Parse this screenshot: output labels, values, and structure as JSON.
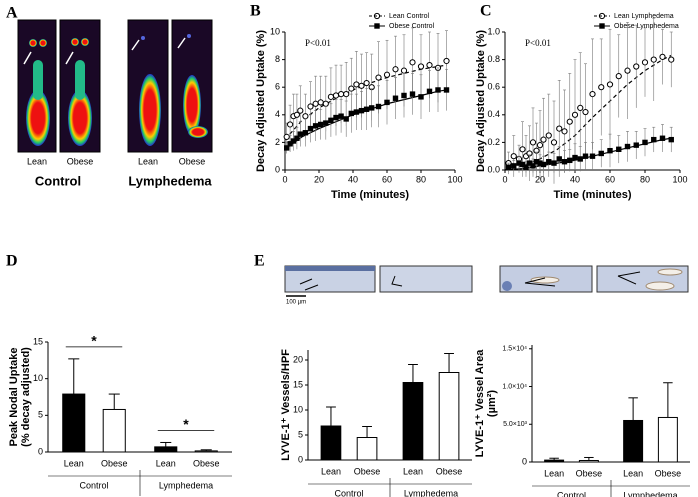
{
  "panel_labels": [
    "A",
    "B",
    "C",
    "D",
    "E"
  ],
  "panel_a": {
    "columns": [
      "Lean",
      "Obese",
      "Lean",
      "Obese"
    ],
    "groups": [
      "Control",
      "Lymphedema"
    ]
  },
  "panel_e": {
    "scale_bar": "100 µm"
  },
  "chart_data": [
    {
      "type": "scatter",
      "annotation": "P<0.01",
      "xlabel": "Time (minutes)",
      "ylabel": "Decay Adjusted Uptake (%)",
      "xlim": [
        0,
        100
      ],
      "ylim": [
        0,
        10
      ],
      "xticks": [
        0,
        20,
        40,
        60,
        80,
        100
      ],
      "yticks": [
        0,
        2,
        4,
        6,
        8,
        10
      ],
      "legend": "upper right",
      "series": [
        {
          "name": "Lean Control",
          "color": "#000000",
          "fill": "#ffffff",
          "marker": "circle",
          "line_dash": true,
          "x": [
            1,
            3,
            5,
            7,
            9,
            12,
            15,
            18,
            21,
            24,
            27,
            30,
            33,
            36,
            39,
            42,
            45,
            48,
            51,
            55,
            60,
            65,
            70,
            75,
            80,
            85,
            90,
            95
          ],
          "values": [
            2.4,
            3.3,
            3.9,
            4.0,
            4.3,
            3.9,
            4.6,
            4.8,
            4.9,
            4.8,
            5.3,
            5.4,
            5.5,
            5.5,
            5.9,
            6.2,
            6.1,
            6.3,
            6.0,
            6.7,
            6.9,
            7.3,
            7.2,
            7.8,
            7.5,
            7.6,
            7.4,
            7.9
          ],
          "errors": [
            1.0,
            1.4,
            1.6,
            1.5,
            1.8,
            1.6,
            1.8,
            2.0,
            1.9,
            2.0,
            2.1,
            2.2,
            2.1,
            2.3,
            2.2,
            2.4,
            2.3,
            2.2,
            2.4,
            2.6,
            2.5,
            2.4,
            2.6,
            2.5,
            2.3,
            2.4,
            2.5,
            2.2
          ],
          "fit_x": [
            0,
            10,
            20,
            30,
            40,
            50,
            60,
            70,
            80,
            90,
            95
          ],
          "fit_values": [
            2.2,
            3.6,
            4.5,
            5.2,
            5.8,
            6.3,
            6.7,
            7.0,
            7.3,
            7.5,
            7.6
          ]
        },
        {
          "name": "Obese Control",
          "color": "#000000",
          "fill": "#000000",
          "marker": "square",
          "line_dash": false,
          "x": [
            1,
            3,
            5,
            7,
            9,
            12,
            15,
            18,
            21,
            24,
            27,
            30,
            33,
            36,
            39,
            42,
            45,
            48,
            51,
            55,
            60,
            65,
            70,
            75,
            80,
            85,
            90,
            95
          ],
          "values": [
            1.6,
            1.9,
            2.1,
            2.3,
            2.6,
            2.7,
            3.0,
            3.2,
            3.3,
            3.4,
            3.6,
            3.8,
            3.9,
            3.7,
            4.1,
            4.2,
            4.3,
            4.4,
            4.5,
            4.6,
            4.9,
            5.2,
            5.4,
            5.5,
            5.3,
            5.7,
            5.8,
            5.8
          ],
          "errors": [
            0.4,
            0.6,
            0.7,
            0.8,
            0.9,
            1.0,
            1.0,
            1.1,
            1.1,
            1.2,
            1.2,
            1.3,
            1.2,
            1.3,
            1.4,
            1.3,
            1.4,
            1.5,
            1.4,
            1.5,
            1.6,
            1.5,
            1.6,
            1.5,
            1.6,
            1.5,
            1.6,
            1.5
          ],
          "fit_x": [
            0,
            10,
            20,
            30,
            40,
            50,
            60,
            70,
            80,
            90,
            95
          ],
          "fit_values": [
            1.5,
            2.4,
            3.0,
            3.5,
            4.0,
            4.4,
            4.8,
            5.1,
            5.4,
            5.7,
            5.8
          ]
        }
      ]
    },
    {
      "type": "scatter",
      "annotation": "P<0.01",
      "xlabel": "Time (minutes)",
      "ylabel": "Decay Adjusted Uptake (%)",
      "xlim": [
        0,
        100
      ],
      "ylim": [
        0,
        1
      ],
      "xticks": [
        0,
        20,
        40,
        60,
        80,
        100
      ],
      "yticks": [
        {
          "value": 0,
          "label": "0.0"
        },
        0.2,
        0.4,
        0.6,
        0.8,
        {
          "value": 1,
          "label": "1.0"
        }
      ],
      "legend": "upper right",
      "series": [
        {
          "name": "Lean Lymphedema",
          "color": "#000000",
          "fill": "#ffffff",
          "marker": "circle",
          "line_dash": true,
          "x": [
            2,
            5,
            8,
            10,
            12,
            14,
            16,
            18,
            20,
            22,
            25,
            28,
            31,
            34,
            37,
            40,
            43,
            46,
            50,
            55,
            60,
            65,
            70,
            75,
            80,
            85,
            90,
            95
          ],
          "values": [
            0.05,
            0.1,
            0.08,
            0.15,
            0.1,
            0.12,
            0.2,
            0.14,
            0.18,
            0.22,
            0.25,
            0.2,
            0.3,
            0.28,
            0.35,
            0.4,
            0.45,
            0.42,
            0.55,
            0.6,
            0.62,
            0.68,
            0.72,
            0.75,
            0.78,
            0.8,
            0.82,
            0.8
          ],
          "errors": [
            0.08,
            0.15,
            0.1,
            0.2,
            0.15,
            0.2,
            0.25,
            0.2,
            0.25,
            0.3,
            0.3,
            0.3,
            0.35,
            0.3,
            0.35,
            0.4,
            0.4,
            0.35,
            0.4,
            0.35,
            0.4,
            0.3,
            0.35,
            0.3,
            0.25,
            0.3,
            0.2,
            0.2
          ],
          "fit_x": [
            0,
            10,
            20,
            30,
            40,
            50,
            60,
            70,
            80,
            90,
            95
          ],
          "fit_values": [
            0,
            0.03,
            0.08,
            0.15,
            0.25,
            0.38,
            0.5,
            0.62,
            0.72,
            0.8,
            0.83
          ]
        },
        {
          "name": "Obese Lymphedema",
          "color": "#000000",
          "fill": "#000000",
          "marker": "square",
          "line_dash": false,
          "x": [
            2,
            5,
            8,
            10,
            12,
            14,
            16,
            18,
            20,
            22,
            25,
            28,
            31,
            34,
            37,
            40,
            43,
            46,
            50,
            55,
            60,
            65,
            70,
            75,
            80,
            85,
            90,
            95
          ],
          "values": [
            0.02,
            0.03,
            0.05,
            0.04,
            0.02,
            0.05,
            0.03,
            0.06,
            0.05,
            0.04,
            0.06,
            0.05,
            0.08,
            0.06,
            0.07,
            0.09,
            0.08,
            0.1,
            0.1,
            0.12,
            0.14,
            0.15,
            0.17,
            0.18,
            0.2,
            0.22,
            0.23,
            0.22
          ],
          "errors": [
            0.03,
            0.04,
            0.05,
            0.05,
            0.04,
            0.06,
            0.05,
            0.07,
            0.06,
            0.06,
            0.07,
            0.07,
            0.09,
            0.08,
            0.08,
            0.1,
            0.09,
            0.1,
            0.1,
            0.1,
            0.12,
            0.1,
            0.11,
            0.1,
            0.1,
            0.09,
            0.1,
            0.09
          ],
          "fit_x": [
            0,
            10,
            20,
            30,
            40,
            50,
            60,
            70,
            80,
            90,
            95
          ],
          "fit_values": [
            0,
            0.01,
            0.03,
            0.05,
            0.07,
            0.1,
            0.13,
            0.16,
            0.19,
            0.22,
            0.23
          ]
        }
      ]
    },
    {
      "type": "bar",
      "ylabel": [
        "Peak Nodal Uptake",
        "(% decay adjusted)"
      ],
      "categories": [
        "Control",
        "Lymphedema"
      ],
      "ylim": [
        0,
        15
      ],
      "yticks": [
        0,
        5,
        10,
        15
      ],
      "significance": [
        "*",
        "*"
      ],
      "series": [
        {
          "name": "Lean",
          "color": "#000000",
          "values": [
            7.9,
            0.7
          ],
          "errors": [
            4.8,
            0.6
          ]
        },
        {
          "name": "Obese",
          "color": "#ffffff",
          "values": [
            5.8,
            0.15
          ],
          "errors": [
            2.1,
            0.15
          ]
        }
      ]
    },
    {
      "type": "bar",
      "ylabel": "LYVE-1⁺ Vessels/HPF",
      "categories": [
        "Control",
        "Lymphedema"
      ],
      "ylim": [
        0,
        22
      ],
      "yticks": [
        0,
        5,
        10,
        15,
        20
      ],
      "series": [
        {
          "name": "Lean",
          "color": "#000000",
          "values": [
            6.8,
            15.5
          ],
          "errors": [
            3.8,
            3.6
          ]
        },
        {
          "name": "Obese",
          "color": "#ffffff",
          "values": [
            4.5,
            17.5
          ],
          "errors": [
            2.2,
            3.8
          ]
        }
      ]
    },
    {
      "type": "bar",
      "ylabel": [
        "LYVE-1⁺ Vessel Area",
        "(µm²)"
      ],
      "categories": [
        "Control",
        "Lymphedema"
      ],
      "ylim": [
        0,
        15500
      ],
      "yticks": [
        0,
        {
          "value": 5000,
          "label": "5.0×10³"
        },
        {
          "value": 10000,
          "label": "1.0×10⁴"
        },
        {
          "value": 15000,
          "label": "1.5×10⁴"
        }
      ],
      "series": [
        {
          "name": "Lean",
          "color": "#000000",
          "values": [
            250,
            5500
          ],
          "errors": [
            250,
            3000
          ]
        },
        {
          "name": "Obese",
          "color": "#ffffff",
          "values": [
            200,
            5900
          ],
          "errors": [
            400,
            4600
          ]
        }
      ]
    }
  ]
}
